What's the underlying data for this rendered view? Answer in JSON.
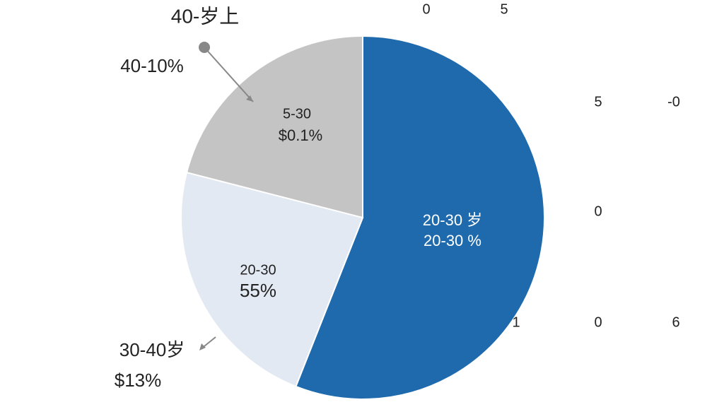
{
  "chart_data": {
    "type": "pie",
    "categories": [
      null,
      null,
      null
    ],
    "values": [
      56,
      23,
      21
    ],
    "colors": [
      "#1f6aad",
      "#e2e9f3",
      "#c4c4c4"
    ],
    "annotations": [
      "40-岁上",
      "40-10%",
      "5-30",
      "$0.1%",
      "20-30 岁",
      "20-30  %",
      "20-30",
      "55%",
      "30-40岁",
      "$13%",
      "0",
      "5",
      "5",
      "-0",
      "0",
      "1",
      "0",
      "6"
    ]
  }
}
